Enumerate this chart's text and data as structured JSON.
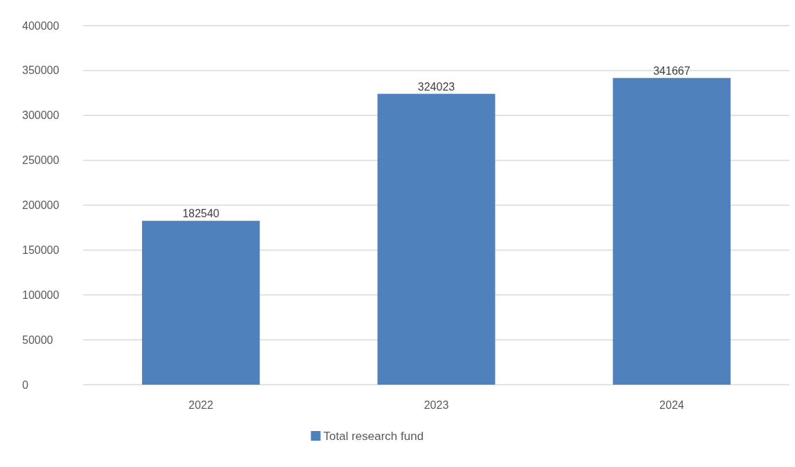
{
  "chart_data": {
    "type": "bar",
    "categories": [
      "2022",
      "2023",
      "2024"
    ],
    "series": [
      {
        "name": "Total research fund",
        "color": "#4f81bd",
        "values": [
          182540,
          324023,
          341667
        ]
      }
    ],
    "ylim": [
      0,
      400000
    ],
    "yticks": [
      0,
      50000,
      100000,
      150000,
      200000,
      250000,
      300000,
      350000,
      400000
    ],
    "grid": "y",
    "legend": "bottom",
    "data_labels": true
  }
}
